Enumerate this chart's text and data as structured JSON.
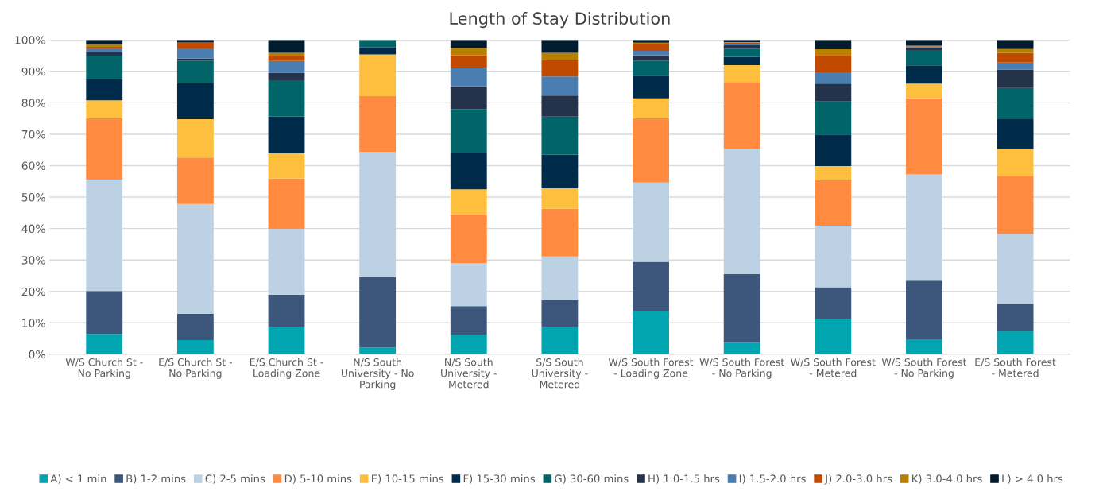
{
  "chart_data": {
    "type": "bar",
    "stacked": true,
    "title": "Length of Stay Distribution",
    "categories": [
      "W/S Church St - No Parking",
      "E/S Church St - No Parking",
      "E/S Church St - Loading Zone",
      "N/S South University - No Parking",
      "N/S South University - Metered",
      "S/S South University - Metered",
      "W/S South Forest - Loading Zone",
      "W/S South Forest - No Parking",
      "W/S South Forest - Metered",
      "W/S South Forest - No Parking",
      "E/S South Forest - Metered"
    ],
    "series": [
      {
        "name": "A) < 1 min",
        "color": "#00a5b0",
        "values": [
          6.5,
          4.5,
          8.6,
          2.2,
          6.1,
          8.6,
          13.9,
          3.7,
          11.3,
          4.8,
          7.5
        ]
      },
      {
        "name": "B) 1-2 mins",
        "color": "#3d577c",
        "values": [
          13.6,
          8.4,
          10.4,
          22.4,
          9.2,
          8.6,
          15.5,
          21.8,
          10.0,
          18.6,
          8.6
        ]
      },
      {
        "name": "C) 2-5 mins",
        "color": "#bdd1e4",
        "values": [
          35.5,
          34.9,
          20.9,
          39.8,
          13.7,
          13.9,
          25.2,
          39.8,
          19.6,
          33.8,
          22.2
        ]
      },
      {
        "name": "D) 5-10 mins",
        "color": "#ff8a40",
        "values": [
          19.5,
          14.8,
          16.0,
          17.7,
          15.6,
          15.2,
          20.5,
          21.3,
          14.5,
          24.2,
          18.5
        ]
      },
      {
        "name": "E) 10-15 mins",
        "color": "#ffbf3e",
        "values": [
          5.7,
          12.2,
          8.0,
          13.3,
          7.9,
          6.5,
          6.3,
          5.4,
          4.5,
          4.7,
          8.5
        ]
      },
      {
        "name": "F) 15-30 mins",
        "color": "#002a4a",
        "values": [
          6.7,
          11.5,
          11.7,
          2.2,
          11.7,
          10.7,
          7.2,
          2.6,
          10.0,
          5.8,
          9.5
        ]
      },
      {
        "name": "G) 30-60 mins",
        "color": "#006468",
        "values": [
          7.5,
          7.1,
          11.6,
          2.4,
          13.8,
          12.1,
          4.8,
          2.6,
          10.5,
          4.9,
          9.9
        ]
      },
      {
        "name": "H) 1.0-1.5 hrs",
        "color": "#24324a",
        "values": [
          1.2,
          0.7,
          2.4,
          0,
          7.2,
          6.7,
          1.7,
          1.1,
          5.7,
          0.8,
          5.9
        ]
      },
      {
        "name": "I) 1.5-2.0 hrs",
        "color": "#4a7eb0",
        "values": [
          1.1,
          3.2,
          3.7,
          0,
          5.8,
          6.1,
          1.4,
          0.5,
          3.6,
          0.3,
          2.2
        ]
      },
      {
        "name": "J) 2.0-3.0 hrs",
        "color": "#c04b00",
        "values": [
          0.5,
          2.0,
          1.7,
          0,
          4.1,
          5.3,
          2.2,
          0.3,
          5.5,
          0.4,
          3.1
        ]
      },
      {
        "name": "K) 3.0-4.0 hrs",
        "color": "#b88000",
        "values": [
          0.7,
          0,
          0.9,
          0,
          2.4,
          2.2,
          0.4,
          0.2,
          1.8,
          0,
          1.2
        ]
      },
      {
        "name": "L) > 4.0 hrs",
        "color": "#001a2e",
        "values": [
          1.5,
          0.7,
          4.1,
          0,
          2.5,
          4.1,
          0.9,
          0.7,
          3.0,
          1.7,
          2.9
        ]
      }
    ],
    "ylim": [
      0,
      100
    ],
    "yticks": [
      {
        "value": 0,
        "label": "0%"
      },
      {
        "value": 10,
        "label": "10%"
      },
      {
        "value": 20,
        "label": "20%"
      },
      {
        "value": 30,
        "label": "30%"
      },
      {
        "value": 40,
        "label": "40%"
      },
      {
        "value": 50,
        "label": "50%"
      },
      {
        "value": 60,
        "label": "60%"
      },
      {
        "value": 70,
        "label": "70%"
      },
      {
        "value": 80,
        "label": "80%"
      },
      {
        "value": 90,
        "label": "90%"
      },
      {
        "value": 100,
        "label": "100%"
      }
    ],
    "grid": "y",
    "legend": "bottom"
  }
}
